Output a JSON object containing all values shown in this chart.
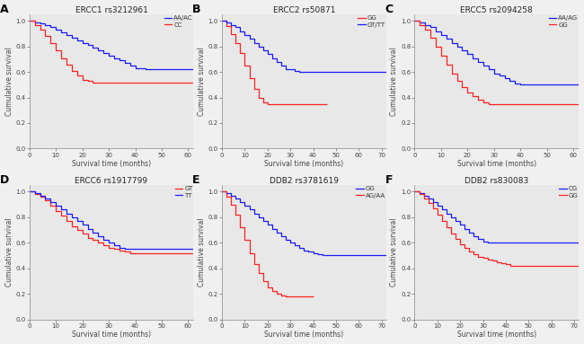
{
  "panels": [
    {
      "label": "A",
      "title": "ERCC1 rs3212961",
      "legend": [
        "AA/AC",
        "CC"
      ],
      "colors": [
        "#1a1aff",
        "#ff2222"
      ],
      "curve1_x": [
        0,
        2,
        4,
        6,
        8,
        10,
        12,
        14,
        16,
        18,
        20,
        22,
        24,
        26,
        28,
        30,
        32,
        34,
        36,
        38,
        40,
        42,
        44,
        46,
        48,
        50,
        52,
        54,
        56,
        58,
        60,
        62
      ],
      "curve1_y": [
        1.0,
        0.99,
        0.98,
        0.97,
        0.95,
        0.93,
        0.91,
        0.89,
        0.87,
        0.85,
        0.83,
        0.81,
        0.79,
        0.77,
        0.75,
        0.73,
        0.71,
        0.69,
        0.67,
        0.65,
        0.63,
        0.63,
        0.62,
        0.62,
        0.62,
        0.62,
        0.62,
        0.62,
        0.62,
        0.62,
        0.62,
        0.62
      ],
      "curve2_x": [
        0,
        2,
        4,
        6,
        8,
        10,
        12,
        14,
        16,
        18,
        20,
        22,
        24,
        26,
        28,
        30,
        32,
        34,
        36,
        38,
        40,
        42,
        44,
        46,
        48,
        50,
        52,
        54,
        56,
        58,
        60,
        62
      ],
      "curve2_y": [
        1.0,
        0.97,
        0.93,
        0.88,
        0.83,
        0.77,
        0.71,
        0.66,
        0.61,
        0.57,
        0.54,
        0.53,
        0.52,
        0.52,
        0.52,
        0.52,
        0.52,
        0.52,
        0.52,
        0.52,
        0.52,
        0.52,
        0.52,
        0.52,
        0.52,
        0.52,
        0.52,
        0.52,
        0.52,
        0.52,
        0.52,
        0.52
      ],
      "xlim": [
        0,
        62
      ],
      "ylim": [
        0.0,
        1.05
      ],
      "xticks": [
        0,
        10,
        20,
        30,
        40,
        50,
        60
      ],
      "yticks": [
        0.0,
        0.2,
        0.4,
        0.6,
        0.8,
        1.0
      ]
    },
    {
      "label": "B",
      "title": "ERCC2 rs50871",
      "legend": [
        "GG",
        "GT/TT"
      ],
      "colors": [
        "#ff2222",
        "#1a1aff"
      ],
      "curve1_x": [
        0,
        2,
        4,
        6,
        8,
        10,
        12,
        14,
        16,
        18,
        20,
        22,
        24,
        26,
        28,
        30,
        32,
        34,
        36,
        38,
        40,
        42,
        44,
        46
      ],
      "curve1_y": [
        1.0,
        0.96,
        0.9,
        0.83,
        0.75,
        0.65,
        0.55,
        0.47,
        0.4,
        0.36,
        0.35,
        0.35,
        0.35,
        0.35,
        0.35,
        0.35,
        0.35,
        0.35,
        0.35,
        0.35,
        0.35,
        0.35,
        0.35,
        0.35
      ],
      "curve2_x": [
        0,
        2,
        4,
        6,
        8,
        10,
        12,
        14,
        16,
        18,
        20,
        22,
        24,
        26,
        28,
        30,
        32,
        34,
        36,
        38,
        40,
        42,
        44,
        46,
        48,
        50,
        52,
        54,
        56,
        58,
        60,
        62,
        64,
        66,
        68,
        70,
        72
      ],
      "curve2_y": [
        1.0,
        0.99,
        0.97,
        0.95,
        0.92,
        0.89,
        0.86,
        0.83,
        0.8,
        0.77,
        0.74,
        0.71,
        0.68,
        0.65,
        0.62,
        0.62,
        0.61,
        0.6,
        0.6,
        0.6,
        0.6,
        0.6,
        0.6,
        0.6,
        0.6,
        0.6,
        0.6,
        0.6,
        0.6,
        0.6,
        0.6,
        0.6,
        0.6,
        0.6,
        0.6,
        0.6,
        0.6
      ],
      "xlim": [
        0,
        72
      ],
      "ylim": [
        0.0,
        1.05
      ],
      "xticks": [
        0,
        10,
        20,
        30,
        40,
        50,
        60,
        70
      ],
      "yticks": [
        0.0,
        0.2,
        0.4,
        0.6,
        0.8,
        1.0
      ]
    },
    {
      "label": "C",
      "title": "ERCC5 rs2094258",
      "legend": [
        "AA/AG",
        "GG"
      ],
      "colors": [
        "#1a1aff",
        "#ff2222"
      ],
      "curve1_x": [
        0,
        2,
        4,
        6,
        8,
        10,
        12,
        14,
        16,
        18,
        20,
        22,
        24,
        26,
        28,
        30,
        32,
        34,
        36,
        38,
        40,
        42,
        44,
        46,
        48,
        50,
        52,
        54,
        56,
        58,
        60,
        62
      ],
      "curve1_y": [
        1.0,
        0.99,
        0.97,
        0.95,
        0.92,
        0.89,
        0.86,
        0.83,
        0.8,
        0.77,
        0.74,
        0.71,
        0.68,
        0.65,
        0.62,
        0.59,
        0.57,
        0.55,
        0.53,
        0.51,
        0.5,
        0.5,
        0.5,
        0.5,
        0.5,
        0.5,
        0.5,
        0.5,
        0.5,
        0.5,
        0.5,
        0.5
      ],
      "curve2_x": [
        0,
        2,
        4,
        6,
        8,
        10,
        12,
        14,
        16,
        18,
        20,
        22,
        24,
        26,
        28,
        30,
        32,
        34,
        36,
        38,
        40,
        42,
        44,
        46,
        48,
        50,
        52,
        54,
        56,
        58,
        60,
        62
      ],
      "curve2_y": [
        1.0,
        0.97,
        0.93,
        0.87,
        0.8,
        0.73,
        0.66,
        0.59,
        0.53,
        0.48,
        0.44,
        0.41,
        0.38,
        0.36,
        0.35,
        0.35,
        0.35,
        0.35,
        0.35,
        0.35,
        0.35,
        0.35,
        0.35,
        0.35,
        0.35,
        0.35,
        0.35,
        0.35,
        0.35,
        0.35,
        0.35,
        0.35
      ],
      "xlim": [
        0,
        62
      ],
      "ylim": [
        0.0,
        1.05
      ],
      "xticks": [
        0,
        10,
        20,
        30,
        40,
        50,
        60
      ],
      "yticks": [
        0.0,
        0.2,
        0.4,
        0.6,
        0.8,
        1.0
      ]
    },
    {
      "label": "D",
      "title": "ERCC6 rs1917799",
      "legend": [
        "GT",
        "TT"
      ],
      "colors": [
        "#ff2222",
        "#1a1aff"
      ],
      "curve1_x": [
        0,
        2,
        4,
        6,
        8,
        10,
        12,
        14,
        16,
        18,
        20,
        22,
        24,
        26,
        28,
        30,
        32,
        34,
        36,
        38,
        40,
        42,
        44,
        46,
        48,
        50,
        52,
        54,
        56,
        58,
        60,
        62
      ],
      "curve1_y": [
        1.0,
        0.98,
        0.96,
        0.93,
        0.89,
        0.85,
        0.81,
        0.77,
        0.73,
        0.7,
        0.67,
        0.64,
        0.62,
        0.6,
        0.58,
        0.56,
        0.55,
        0.54,
        0.53,
        0.52,
        0.52,
        0.52,
        0.52,
        0.52,
        0.52,
        0.52,
        0.52,
        0.52,
        0.52,
        0.52,
        0.52,
        0.52
      ],
      "curve2_x": [
        0,
        2,
        4,
        6,
        8,
        10,
        12,
        14,
        16,
        18,
        20,
        22,
        24,
        26,
        28,
        30,
        32,
        34,
        36,
        38,
        40,
        42,
        44,
        46,
        48,
        50,
        52,
        54,
        56,
        58,
        60,
        62
      ],
      "curve2_y": [
        1.0,
        0.99,
        0.97,
        0.95,
        0.92,
        0.89,
        0.86,
        0.83,
        0.8,
        0.77,
        0.74,
        0.71,
        0.68,
        0.65,
        0.62,
        0.6,
        0.58,
        0.56,
        0.55,
        0.55,
        0.55,
        0.55,
        0.55,
        0.55,
        0.55,
        0.55,
        0.55,
        0.55,
        0.55,
        0.55,
        0.55,
        0.55
      ],
      "xlim": [
        0,
        62
      ],
      "ylim": [
        0.0,
        1.05
      ],
      "xticks": [
        0,
        10,
        20,
        30,
        40,
        50,
        60
      ],
      "yticks": [
        0.0,
        0.2,
        0.4,
        0.6,
        0.8,
        1.0
      ]
    },
    {
      "label": "E",
      "title": "DDB2 rs3781619",
      "legend": [
        "GG",
        "AG/AA"
      ],
      "colors": [
        "#1a1aff",
        "#ff2222"
      ],
      "curve1_x": [
        0,
        2,
        4,
        6,
        8,
        10,
        12,
        14,
        16,
        18,
        20,
        22,
        24,
        26,
        28,
        30,
        32,
        34,
        36,
        38,
        40,
        42,
        44,
        46,
        48,
        50,
        52,
        54,
        56,
        58,
        60,
        62,
        64,
        66,
        68,
        70,
        72
      ],
      "curve1_y": [
        1.0,
        0.99,
        0.97,
        0.95,
        0.92,
        0.89,
        0.86,
        0.83,
        0.8,
        0.77,
        0.74,
        0.71,
        0.68,
        0.65,
        0.62,
        0.6,
        0.58,
        0.56,
        0.54,
        0.53,
        0.52,
        0.51,
        0.5,
        0.5,
        0.5,
        0.5,
        0.5,
        0.5,
        0.5,
        0.5,
        0.5,
        0.5,
        0.5,
        0.5,
        0.5,
        0.5,
        0.5
      ],
      "curve2_x": [
        0,
        2,
        4,
        6,
        8,
        10,
        12,
        14,
        16,
        18,
        20,
        22,
        24,
        26,
        28,
        30,
        32,
        34,
        36,
        38,
        40
      ],
      "curve2_y": [
        1.0,
        0.96,
        0.9,
        0.82,
        0.72,
        0.62,
        0.52,
        0.43,
        0.36,
        0.3,
        0.25,
        0.22,
        0.2,
        0.19,
        0.18,
        0.18,
        0.18,
        0.18,
        0.18,
        0.18,
        0.18
      ],
      "xlim": [
        0,
        72
      ],
      "ylim": [
        0.0,
        1.05
      ],
      "xticks": [
        0,
        10,
        20,
        30,
        40,
        50,
        60,
        70
      ],
      "yticks": [
        0.0,
        0.2,
        0.4,
        0.6,
        0.8,
        1.0
      ]
    },
    {
      "label": "F",
      "title": "DDB2 rs830083",
      "legend": [
        "CG",
        "GG"
      ],
      "colors": [
        "#1a1aff",
        "#ff2222"
      ],
      "curve1_x": [
        0,
        2,
        4,
        6,
        8,
        10,
        12,
        14,
        16,
        18,
        20,
        22,
        24,
        26,
        28,
        30,
        32,
        34,
        36,
        38,
        40,
        42,
        44,
        46,
        48,
        50,
        52,
        54,
        56,
        58,
        60,
        62,
        64,
        66,
        68,
        70,
        72
      ],
      "curve1_y": [
        1.0,
        0.99,
        0.97,
        0.95,
        0.92,
        0.89,
        0.86,
        0.83,
        0.8,
        0.77,
        0.74,
        0.71,
        0.68,
        0.65,
        0.63,
        0.61,
        0.6,
        0.6,
        0.6,
        0.6,
        0.6,
        0.6,
        0.6,
        0.6,
        0.6,
        0.6,
        0.6,
        0.6,
        0.6,
        0.6,
        0.6,
        0.6,
        0.6,
        0.6,
        0.6,
        0.6,
        0.6
      ],
      "curve2_x": [
        0,
        2,
        4,
        6,
        8,
        10,
        12,
        14,
        16,
        18,
        20,
        22,
        24,
        26,
        28,
        30,
        32,
        34,
        36,
        38,
        40,
        42,
        44,
        46,
        48,
        50,
        52,
        54,
        56,
        58,
        60,
        62,
        64,
        66,
        68,
        70,
        72
      ],
      "curve2_y": [
        1.0,
        0.98,
        0.95,
        0.91,
        0.87,
        0.82,
        0.77,
        0.72,
        0.67,
        0.63,
        0.59,
        0.56,
        0.53,
        0.51,
        0.49,
        0.48,
        0.47,
        0.46,
        0.45,
        0.44,
        0.43,
        0.42,
        0.42,
        0.42,
        0.42,
        0.42,
        0.42,
        0.42,
        0.42,
        0.42,
        0.42,
        0.42,
        0.42,
        0.42,
        0.42,
        0.42,
        0.42
      ],
      "xlim": [
        0,
        72
      ],
      "ylim": [
        0.0,
        1.05
      ],
      "xticks": [
        0,
        10,
        20,
        30,
        40,
        50,
        60,
        70
      ],
      "yticks": [
        0.0,
        0.2,
        0.4,
        0.6,
        0.8,
        1.0
      ]
    }
  ],
  "xlabel": "Survival time (months)",
  "ylabel": "Cumulative survival",
  "bg_color": "#f0f0f0",
  "plot_bg": "#e8e8e8",
  "tick_fontsize": 5,
  "label_fontsize": 5.5,
  "title_fontsize": 6.5,
  "legend_fontsize": 5,
  "panel_label_fontsize": 9,
  "linewidth": 0.9
}
